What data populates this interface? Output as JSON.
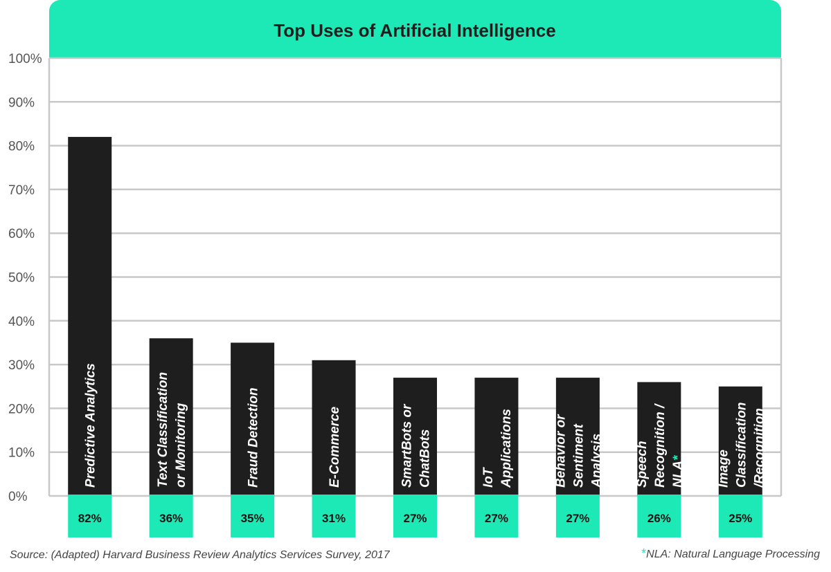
{
  "chart_data": {
    "type": "bar",
    "title": "Top Uses of Artificial Intelligence",
    "categories": [
      [
        "Predictive Analytics"
      ],
      [
        "Text Classification",
        "or Monitoring"
      ],
      [
        "Fraud Detection"
      ],
      [
        "E-Commerce"
      ],
      [
        "SmartBots or",
        "ChatBots"
      ],
      [
        "IoT",
        "Applications"
      ],
      [
        "Behavior or",
        "Sentiment",
        "Analysis"
      ],
      [
        "Speech",
        "Recognition /",
        "NLA*"
      ],
      [
        "Image",
        "Classification",
        "/Recognition"
      ]
    ],
    "values": [
      82,
      36,
      35,
      31,
      27,
      27,
      27,
      26,
      25
    ],
    "value_labels": [
      "82%",
      "36%",
      "35%",
      "31%",
      "27%",
      "27%",
      "27%",
      "26%",
      "25%"
    ],
    "yticks": [
      "0%",
      "10%",
      "20%",
      "30%",
      "40%",
      "50%",
      "60%",
      "70%",
      "80%",
      "90%",
      "100%"
    ],
    "ylim": [
      0,
      100
    ],
    "grid": true,
    "colors": {
      "bar": "#1e1e1e",
      "accent": "#1de9b6",
      "grid": "#c8c8c8"
    }
  },
  "footer": {
    "source": "Source: (Adapted) Harvard Business Review Analytics Services Survey, 2017",
    "footnote_star": "*",
    "footnote": "NLA: Natural Language Processing"
  }
}
